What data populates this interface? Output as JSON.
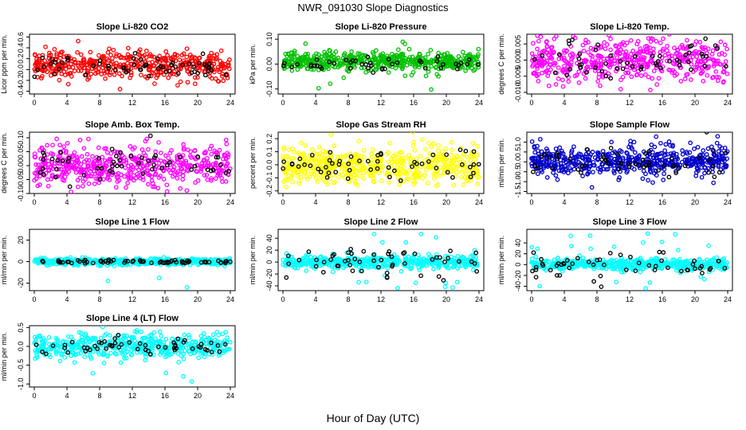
{
  "figure": {
    "title": "NWR_091030  Slope Diagnostics",
    "xlabel": "Hour of Day (UTC)"
  },
  "chart_data": [
    {
      "type": "scatter",
      "title": "Slope Li-820 CO2",
      "ylabel": "Licor ppm per min.",
      "color": "#ff0000",
      "xlim": [
        0,
        24
      ],
      "ylim": [
        -0.45,
        0.65
      ],
      "xticks": [
        "0",
        "4",
        "8",
        "12",
        "16",
        "20",
        "24"
      ],
      "yticks": [
        -0.4,
        -0.2,
        0.0,
        0.2,
        0.4,
        0.6
      ],
      "yticklabels": [
        "-0.4",
        "-0.2",
        "0.0",
        "0.2",
        "0.4",
        "0.6"
      ],
      "series": [
        {
          "style": "main",
          "x_range": [
            0,
            24
          ],
          "n": 450,
          "center": 0.08,
          "spread": 0.13,
          "outlier_prob": 0.03,
          "outlier_range": [
            -0.3,
            0.55
          ]
        },
        {
          "style": "black",
          "x_range": [
            0,
            24
          ],
          "n": 60,
          "center": 0.05,
          "spread": 0.1
        }
      ]
    },
    {
      "type": "scatter",
      "title": "Slope Li-820 Pressure",
      "ylabel": "kPa per min.",
      "color": "#00c000",
      "xlim": [
        0,
        24
      ],
      "ylim": [
        -0.12,
        0.12
      ],
      "xticks": [
        "0",
        "4",
        "8",
        "12",
        "16",
        "20",
        "24"
      ],
      "yticks": [
        -0.1,
        0.0,
        0.1
      ],
      "yticklabels": [
        "-0.10",
        "0.00",
        "0.10"
      ],
      "series": [
        {
          "style": "main",
          "x_range": [
            0,
            24
          ],
          "n": 550,
          "center": 0.01,
          "spread": 0.018,
          "outlier_prob": 0.04,
          "outlier_range": [
            -0.11,
            0.1
          ]
        },
        {
          "style": "black",
          "x_range": [
            0,
            24
          ],
          "n": 45,
          "center": 0.0,
          "spread": 0.012
        }
      ]
    },
    {
      "type": "scatter",
      "title": "Slope Li-820 Temp.",
      "ylabel": "degrees C per min.",
      "color": "#ff00ff",
      "xlim": [
        0,
        24
      ],
      "ylim": [
        -0.0105,
        0.008
      ],
      "xticks": [
        "0",
        "4",
        "8",
        "12",
        "16",
        "20",
        "24"
      ],
      "yticks": [
        -0.01,
        -0.005,
        0.0,
        0.005
      ],
      "yticklabels": [
        "-0.010",
        "-0.005",
        "0.000",
        "0.005"
      ],
      "series": [
        {
          "style": "main",
          "x_range": [
            0,
            24
          ],
          "n": 500,
          "center": -0.0005,
          "spread": 0.0035,
          "outlier_prob": 0.02,
          "outlier_range": [
            -0.01,
            0.007
          ]
        },
        {
          "style": "black",
          "x_range": [
            0,
            24
          ],
          "n": 55,
          "center": 0.0,
          "spread": 0.003
        }
      ]
    },
    {
      "type": "scatter",
      "title": "Slope Amb. Box Temp.",
      "ylabel": "degrees C per min.",
      "color": "#ff00ff",
      "xlim": [
        0,
        24
      ],
      "ylim": [
        -0.1,
        0.12
      ],
      "xticks": [
        "0",
        "4",
        "8",
        "12",
        "16",
        "20",
        "24"
      ],
      "yticks": [
        -0.1,
        -0.05,
        0.0,
        0.05,
        0.1
      ],
      "yticklabels": [
        "-0.10",
        "-0.05",
        "0.00",
        "0.05",
        "0.10"
      ],
      "series": [
        {
          "style": "main",
          "x_range": [
            0,
            24
          ],
          "n": 500,
          "center": 0.0,
          "spread": 0.035,
          "outlier_prob": 0.02,
          "outlier_range": [
            -0.09,
            0.1
          ]
        },
        {
          "style": "black",
          "x_range": [
            0,
            24
          ],
          "n": 55,
          "center": 0.0,
          "spread": 0.03
        }
      ]
    },
    {
      "type": "scatter",
      "title": "Slope Gas Stream RH",
      "ylabel": "percent per min.",
      "color": "#ffff00",
      "xlim": [
        0,
        24
      ],
      "ylim": [
        -0.22,
        0.25
      ],
      "xticks": [
        "0",
        "4",
        "8",
        "12",
        "16",
        "20",
        "24"
      ],
      "yticks": [
        -0.2,
        -0.1,
        0.0,
        0.1,
        0.2
      ],
      "yticklabels": [
        "-0.2",
        "-0.1",
        "0.0",
        "0.1",
        "0.2"
      ],
      "series": [
        {
          "style": "main",
          "x_range": [
            0,
            24
          ],
          "n": 550,
          "center": 0.0,
          "spread": 0.07,
          "outlier_prob": 0.02,
          "outlier_range": [
            -0.2,
            0.22
          ]
        },
        {
          "style": "black",
          "x_range": [
            0,
            24
          ],
          "n": 55,
          "center": 0.0,
          "spread": 0.06
        }
      ]
    },
    {
      "type": "scatter",
      "title": "Slope Sample Flow",
      "ylabel": "ml/min per min.",
      "color": "#0000cc",
      "xlim": [
        0,
        24
      ],
      "ylim": [
        -1.6,
        1.5
      ],
      "xticks": [
        "0",
        "4",
        "8",
        "12",
        "16",
        "20",
        "24"
      ],
      "yticks": [
        -1.5,
        -1.0,
        -0.5,
        0.0,
        0.5,
        1.0
      ],
      "yticklabels": [
        "-1.5",
        "-1.0",
        "-0.5",
        "0.0",
        "0.5",
        "1.0"
      ],
      "series": [
        {
          "style": "main",
          "x_range": [
            0,
            24
          ],
          "n": 550,
          "center": 0.05,
          "spread": 0.35,
          "outlier_prob": 0.03,
          "outlier_range": [
            -1.5,
            1.3
          ]
        },
        {
          "style": "black",
          "x_range": [
            0,
            24
          ],
          "n": 55,
          "center": 0.0,
          "spread": 0.35
        }
      ]
    },
    {
      "type": "scatter",
      "title": "Slope Line 1 Flow",
      "ylabel": "ml/min per min.",
      "color": "#00ffff",
      "xlim": [
        0,
        24
      ],
      "ylim": [
        -27,
        30
      ],
      "xticks": [
        "0",
        "4",
        "8",
        "12",
        "16",
        "20",
        "24"
      ],
      "yticks": [
        -20,
        0,
        20
      ],
      "yticklabels": [
        "-20",
        "0",
        "20"
      ],
      "series": [
        {
          "style": "main",
          "x_range": [
            0,
            24
          ],
          "n": 500,
          "center": 0.0,
          "spread": 1.5,
          "outlier_prob": 0.02,
          "outlier_range": [
            -25,
            28
          ]
        },
        {
          "style": "black",
          "x_range": [
            0,
            24
          ],
          "n": 70,
          "center": 0.0,
          "spread": 0.8
        }
      ]
    },
    {
      "type": "scatter",
      "title": "Slope Line 2 Flow",
      "ylabel": "ml/min per min.",
      "color": "#00ffff",
      "xlim": [
        0,
        24
      ],
      "ylim": [
        -48,
        55
      ],
      "xticks": [
        "0",
        "4",
        "8",
        "12",
        "16",
        "20",
        "24"
      ],
      "yticks": [
        -40,
        -20,
        0,
        20,
        40
      ],
      "yticklabels": [
        "-40",
        "-20",
        "0",
        "20",
        "40"
      ],
      "series": [
        {
          "style": "main",
          "x_range": [
            0,
            24
          ],
          "n": 500,
          "center": 0.0,
          "spread": 5,
          "outlier_prob": 0.05,
          "outlier_range": [
            -45,
            50
          ]
        },
        {
          "style": "black",
          "x_range": [
            0,
            24
          ],
          "n": 55,
          "center": 0.0,
          "spread": 12
        }
      ]
    },
    {
      "type": "scatter",
      "title": "Slope Line 3 Flow",
      "ylabel": "ml/min per min.",
      "color": "#00ffff",
      "xlim": [
        0,
        24
      ],
      "ylim": [
        -48,
        65
      ],
      "xticks": [
        "0",
        "4",
        "8",
        "12",
        "16",
        "20",
        "24"
      ],
      "yticks": [
        -40,
        -20,
        0,
        20,
        40
      ],
      "yticklabels": [
        "-40",
        "-20",
        "0",
        "20",
        "40"
      ],
      "series": [
        {
          "style": "main",
          "x_range": [
            0,
            24
          ],
          "n": 500,
          "center": 0.0,
          "spread": 5,
          "outlier_prob": 0.05,
          "outlier_range": [
            -45,
            60
          ]
        },
        {
          "style": "black",
          "x_range": [
            0,
            24
          ],
          "n": 55,
          "center": 0.0,
          "spread": 12
        }
      ]
    },
    {
      "type": "scatter",
      "title": "Slope Line 4 (LT) Flow",
      "ylabel": "ml/min per min.",
      "color": "#00ffff",
      "xlim": [
        0,
        24
      ],
      "ylim": [
        -1.08,
        0.55
      ],
      "xticks": [
        "0",
        "4",
        "8",
        "12",
        "16",
        "20",
        "24"
      ],
      "yticks": [
        -1.0,
        -0.5,
        0.0,
        0.5
      ],
      "yticklabels": [
        "-1.0",
        "-0.5",
        "0.0",
        "0.5"
      ],
      "series": [
        {
          "style": "main",
          "x_range": [
            0,
            24
          ],
          "n": 500,
          "center": 0.02,
          "spread": 0.15,
          "outlier_prob": 0.02,
          "outlier_range": [
            -1.0,
            0.4
          ]
        },
        {
          "style": "black",
          "x_range": [
            0,
            24
          ],
          "n": 55,
          "center": 0.0,
          "spread": 0.12
        }
      ]
    }
  ]
}
